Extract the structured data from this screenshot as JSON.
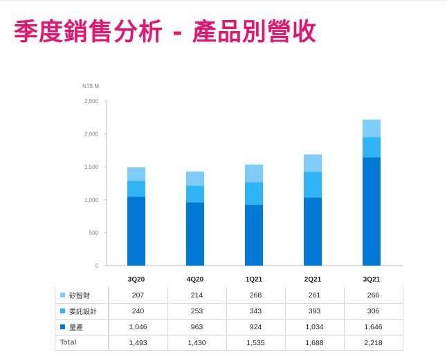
{
  "title": "季度銷售分析 - 產品別營收",
  "colors": {
    "title": "#e5156f",
    "mass_production": "#0078d4",
    "design_service": "#2fb4f5",
    "ip": "#80ccf9"
  },
  "table": {
    "rows": [
      {
        "label": "矽智財",
        "color_key": "ip",
        "values": [
          "207",
          "214",
          "268",
          "261",
          "266"
        ]
      },
      {
        "label": "委託設計",
        "color_key": "design_service",
        "values": [
          "240",
          "253",
          "343",
          "393",
          "306"
        ]
      },
      {
        "label": "量產",
        "color_key": "mass_production",
        "values": [
          "1,046",
          "963",
          "924",
          "1,034",
          "1,646"
        ]
      },
      {
        "label": "Total",
        "color_key": null,
        "values": [
          "1,493",
          "1,430",
          "1,535",
          "1,688",
          "2,218"
        ]
      }
    ]
  },
  "chart_data": {
    "type": "bar",
    "stacked": true,
    "unit_label": "NT$ M",
    "categories": [
      "3Q20",
      "4Q20",
      "1Q21",
      "2Q21",
      "3Q21"
    ],
    "series": [
      {
        "name": "量產",
        "color": "#0078d4",
        "values": [
          1046,
          963,
          924,
          1034,
          1646
        ]
      },
      {
        "name": "委託設計",
        "color": "#2fb4f5",
        "values": [
          240,
          253,
          343,
          393,
          306
        ]
      },
      {
        "name": "矽智財",
        "color": "#80ccf9",
        "values": [
          207,
          214,
          268,
          261,
          266
        ]
      }
    ],
    "y_ticks": [
      "0",
      "500",
      "1,000",
      "1,500",
      "2,000",
      "2,500"
    ],
    "ylim": [
      0,
      2500
    ],
    "grid": false
  }
}
